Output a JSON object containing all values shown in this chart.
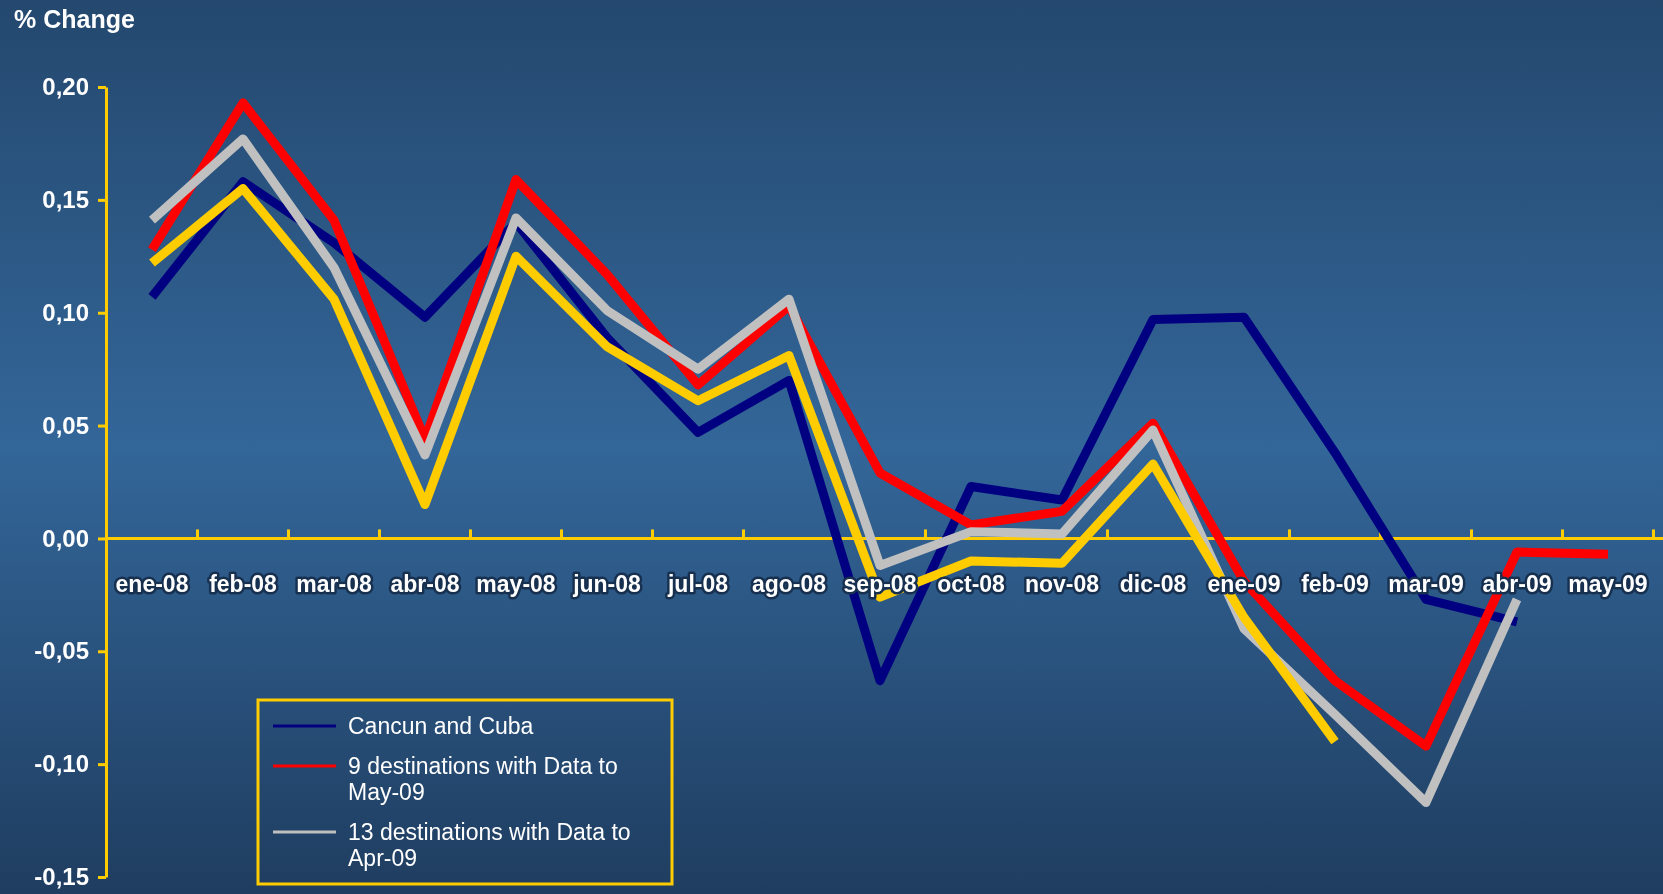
{
  "chart_data": {
    "type": "line",
    "ylabel": "% Change",
    "categories": [
      "ene-08",
      "feb-08",
      "mar-08",
      "abr-08",
      "may-08",
      "jun-08",
      "jul-08",
      "ago-08",
      "sep-08",
      "oct-08",
      "nov-08",
      "dic-08",
      "ene-09",
      "feb-09",
      "mar-09",
      "abr-09",
      "may-09"
    ],
    "ylim": [
      -0.15,
      0.2
    ],
    "yticks": [
      {
        "value": -0.15,
        "label": "-0,15"
      },
      {
        "value": -0.1,
        "label": "-0,10"
      },
      {
        "value": -0.05,
        "label": "-0,05"
      },
      {
        "value": 0,
        "label": "0,00"
      },
      {
        "value": 0.05,
        "label": "0,05"
      },
      {
        "value": 0.1,
        "label": "0,10"
      },
      {
        "value": 0.15,
        "label": "0,15"
      },
      {
        "value": 0.2,
        "label": "0,20"
      }
    ],
    "grid": false,
    "legend": "bottom left",
    "marker": "none",
    "line_style": "solid",
    "series": [
      {
        "name": "Cancun and Cuba",
        "color": "#000080",
        "values": [
          0.107,
          0.158,
          0.131,
          0.098,
          0.14,
          0.089,
          0.047,
          0.07,
          -0.063,
          0.023,
          0.017,
          0.097,
          0.098,
          0.038,
          -0.027,
          -0.037,
          null
        ]
      },
      {
        "name": "9 destinations with Data to May-09",
        "color": "#ff0000",
        "values": [
          0.128,
          0.193,
          0.141,
          0.044,
          0.159,
          0.117,
          0.068,
          0.103,
          0.029,
          0.006,
          0.012,
          0.051,
          -0.019,
          -0.063,
          -0.092,
          -0.006,
          -0.007
        ]
      },
      {
        "name": "13 destinations with Data to Apr-09",
        "color": "#c0c0c0",
        "values": [
          0.141,
          0.177,
          0.12,
          0.037,
          0.142,
          0.101,
          0.075,
          0.106,
          -0.012,
          0.003,
          0.002,
          0.048,
          -0.04,
          -0.078,
          -0.117,
          -0.027,
          null
        ]
      },
      {
        "color": "#ffcc00",
        "values": [
          0.122,
          0.155,
          0.106,
          0.015,
          0.125,
          0.085,
          0.061,
          0.081,
          -0.026,
          -0.01,
          -0.011,
          0.033,
          -0.035,
          -0.09,
          null,
          null,
          null
        ]
      }
    ]
  }
}
